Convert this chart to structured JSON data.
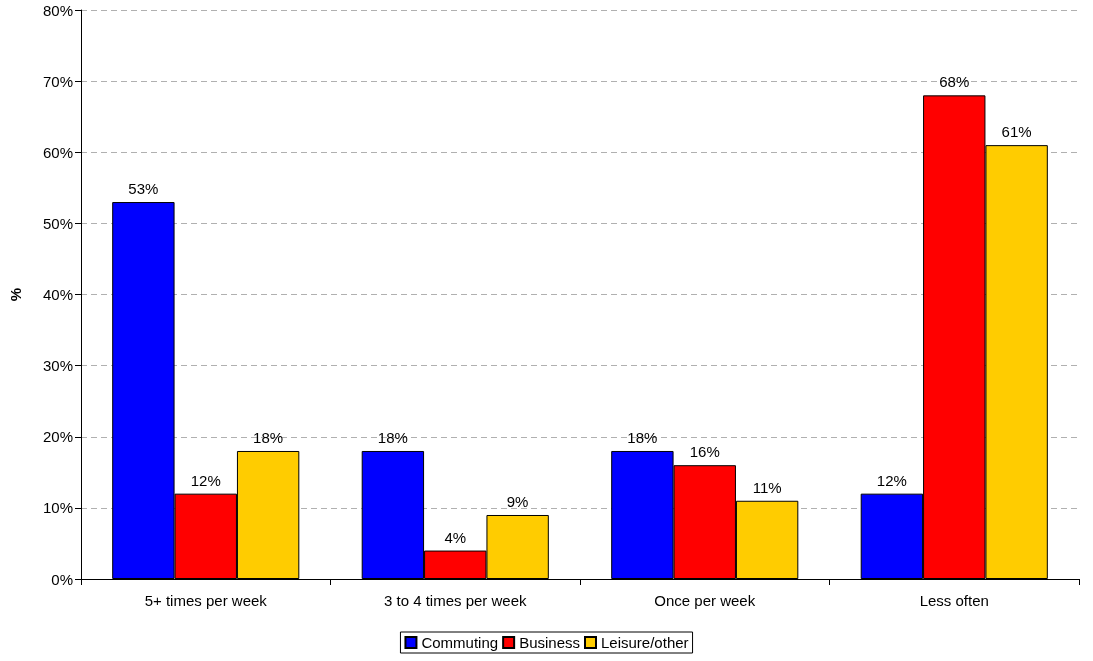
{
  "chart_data": {
    "type": "bar",
    "ylabel": "%",
    "categories": [
      "5+ times per week",
      "3 to 4 times per week",
      "Once per week",
      "Less often"
    ],
    "series": [
      {
        "name": "Commuting",
        "color": "#0000ff",
        "values": [
          53,
          18,
          18,
          12
        ],
        "value_labels": [
          "53%",
          "18%",
          "18%",
          "12%"
        ]
      },
      {
        "name": "Business",
        "color": "#ff0000",
        "values": [
          12,
          4,
          16,
          68
        ],
        "value_labels": [
          "12%",
          "4%",
          "16%",
          "68%"
        ]
      },
      {
        "name": "Leisure/other",
        "color": "#ffcc00",
        "values": [
          18,
          9,
          11,
          61
        ],
        "value_labels": [
          "18%",
          "9%",
          "11%",
          "61%"
        ]
      }
    ],
    "ylim": [
      0,
      80
    ],
    "yticks": [
      {
        "value": 0,
        "label": "0%"
      },
      {
        "value": 10,
        "label": "10%"
      },
      {
        "value": 20,
        "label": "20%"
      },
      {
        "value": 30,
        "label": "30%"
      },
      {
        "value": 40,
        "label": "40%"
      },
      {
        "value": 50,
        "label": "50%"
      },
      {
        "value": 60,
        "label": "60%"
      },
      {
        "value": 70,
        "label": "70%"
      },
      {
        "value": 80,
        "label": "80%"
      }
    ],
    "grid": "y",
    "legend": "bottom"
  }
}
